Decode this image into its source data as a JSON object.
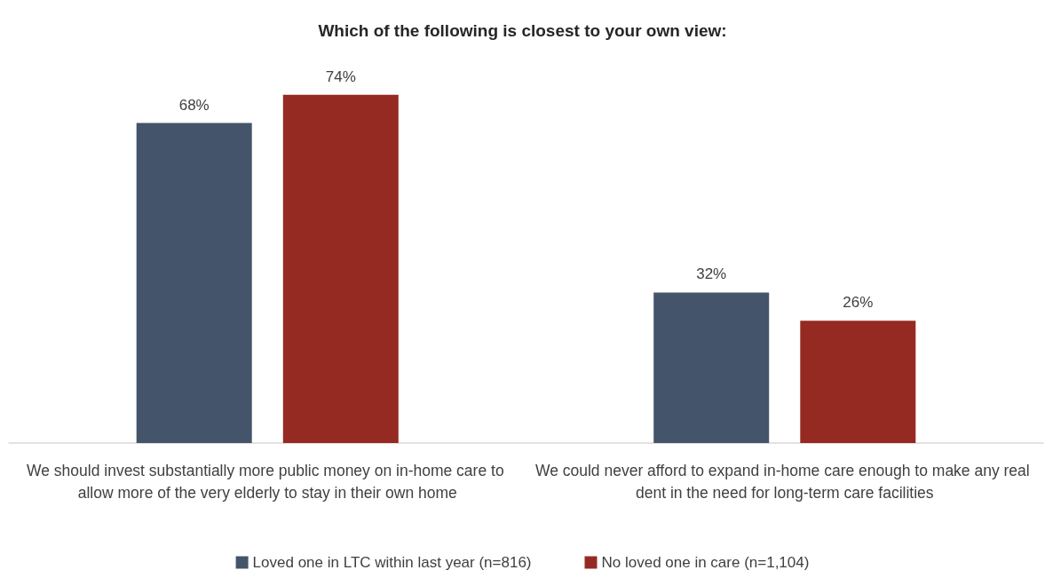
{
  "chart_data": {
    "type": "bar",
    "title": "Which of the following is closest to your own view:",
    "categories": [
      "We should invest substantially more public money on in-home care to allow more of the very elderly to stay in their own home",
      "We could never afford to expand in-home care enough to make any real dent in the need for long-term care facilities"
    ],
    "series": [
      {
        "name": "Loved one in LTC within last year (n=816)",
        "color": "#44546a",
        "values": [
          68,
          32
        ],
        "value_labels": [
          "68%",
          "32%"
        ]
      },
      {
        "name": "No loved one in care (n=1,104)",
        "color": "#952a22",
        "values": [
          74,
          26
        ],
        "value_labels": [
          "74%",
          "26%"
        ]
      }
    ],
    "legend": "bottom"
  }
}
